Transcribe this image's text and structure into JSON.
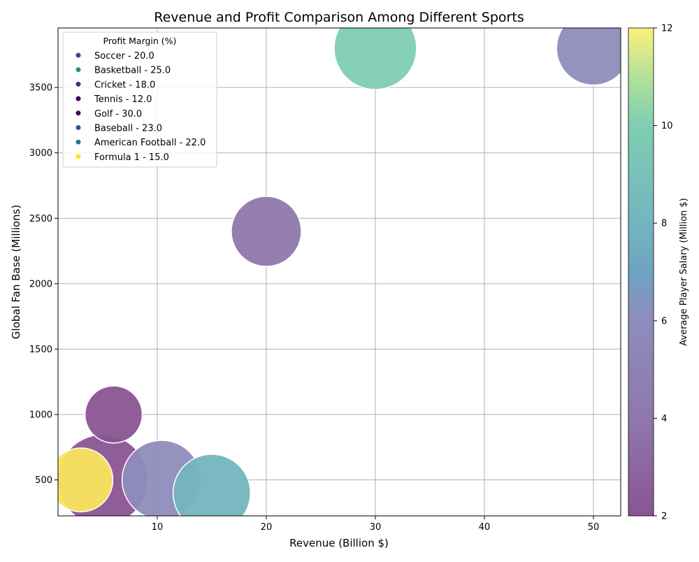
{
  "chart_data": {
    "type": "scatter",
    "title": "Revenue and Profit Comparison Among Different Sports",
    "xlabel": "Revenue (Billion $)",
    "ylabel": "Global Fan Base (Millions)",
    "xlim": [
      0.9,
      52.5
    ],
    "ylim": [
      225,
      3955
    ],
    "x_ticks": [
      10,
      20,
      30,
      40,
      50
    ],
    "y_ticks": [
      500,
      1000,
      1500,
      2000,
      2500,
      3000,
      3500
    ],
    "grid": true,
    "legend_title": "Profit Margin (%)",
    "legend_placement": "top-left",
    "colorbar": {
      "label": "Average Player Salary (Million $)",
      "range": [
        2,
        12
      ],
      "ticks": [
        2,
        4,
        6,
        8,
        10,
        12
      ],
      "colormap": "viridis"
    },
    "points": [
      {
        "name": "Soccer",
        "legend": "Soccer - 20.0",
        "revenue": 50,
        "fan_base": 3800,
        "profit_margin": 20.0,
        "avg_salary": 4.0,
        "color": "#8e8dbd",
        "legend_color": "#414487"
      },
      {
        "name": "Basketball",
        "legend": "Basketball - 25.0",
        "revenue": 30,
        "fan_base": 3800,
        "profit_margin": 25.0,
        "avg_salary": 8.0,
        "color": "#7fcdb2",
        "legend_color": "#21918c"
      },
      {
        "name": "Cricket",
        "legend": "Cricket - 18.0",
        "revenue": 20,
        "fan_base": 2400,
        "profit_margin": 18.0,
        "avg_salary": 3.0,
        "color": "#8f78ab",
        "legend_color": "#472d7b"
      },
      {
        "name": "Tennis",
        "legend": "Tennis - 12.0",
        "revenue": 6,
        "fan_base": 1000,
        "profit_margin": 12.0,
        "avg_salary": 2.0,
        "color": "#8a5494",
        "legend_color": "#440154"
      },
      {
        "name": "Golf",
        "legend": "Golf - 30.0",
        "revenue": 5,
        "fan_base": 500,
        "profit_margin": 30.0,
        "avg_salary": 2.0,
        "color": "#8a5494",
        "legend_color": "#440154"
      },
      {
        "name": "Baseball",
        "legend": "Baseball - 23.0",
        "revenue": 10.4,
        "fan_base": 500,
        "profit_margin": 23.0,
        "avg_salary": 4.0,
        "color": "#8e8dbd",
        "legend_color": "#3b528b"
      },
      {
        "name": "American Football",
        "legend": "American Football - 22.0",
        "revenue": 15,
        "fan_base": 400,
        "profit_margin": 22.0,
        "avg_salary": 7.0,
        "color": "#73b5bf",
        "legend_color": "#2c728e"
      },
      {
        "name": "Formula 1",
        "legend": "Formula 1 - 15.0",
        "revenue": 3,
        "fan_base": 500,
        "profit_margin": 15.0,
        "avg_salary": 12.0,
        "color": "#fae55f",
        "legend_color": "#fde725"
      }
    ]
  }
}
